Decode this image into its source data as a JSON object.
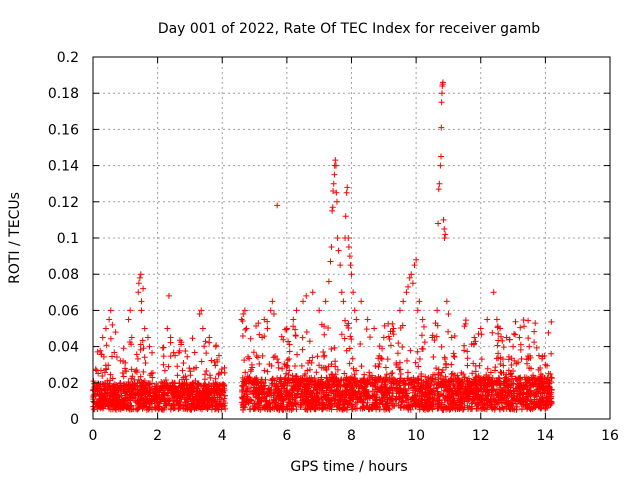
{
  "chart_data": {
    "type": "scatter",
    "title": "Day 001 of 2022, Rate Of TEC Index for receiver gamb",
    "xlabel": "GPS time / hours",
    "ylabel": "ROTI / TECUs",
    "xlim": [
      0,
      16
    ],
    "ylim": [
      0,
      0.2
    ],
    "x_ticks": [
      0,
      2,
      4,
      6,
      8,
      10,
      12,
      14,
      16
    ],
    "x_tick_labels": [
      "0",
      "2",
      "4",
      "6",
      "8",
      "10",
      "12",
      "14",
      "16"
    ],
    "y_ticks": [
      0,
      0.02,
      0.04,
      0.06,
      0.08,
      0.1,
      0.12,
      0.14,
      0.16,
      0.18,
      0.2
    ],
    "y_tick_labels": [
      "0",
      "0.02",
      "0.04",
      "0.06",
      "0.08",
      "0.1",
      "0.12",
      "0.14",
      "0.16",
      "0.18",
      "0.2"
    ],
    "grid": true,
    "marker": "+",
    "marker_color": "#ff0000",
    "series": [
      {
        "name": "ROTI",
        "segments": [
          {
            "x_range": [
              0.0,
              4.1
            ],
            "typical": [
              0.005,
              0.03
            ],
            "max_typical": 0.045
          },
          {
            "x_range": [
              4.6,
              14.2
            ],
            "typical": [
              0.005,
              0.035
            ],
            "max_typical": 0.055
          }
        ],
        "points": [
          [
            0.3,
            0.045
          ],
          [
            0.4,
            0.05
          ],
          [
            0.5,
            0.055
          ],
          [
            0.55,
            0.06
          ],
          [
            0.6,
            0.052
          ],
          [
            0.7,
            0.048
          ],
          [
            1.1,
            0.055
          ],
          [
            1.15,
            0.06
          ],
          [
            1.2,
            0.045
          ],
          [
            1.4,
            0.07
          ],
          [
            1.42,
            0.075
          ],
          [
            1.45,
            0.078
          ],
          [
            1.48,
            0.08
          ],
          [
            1.5,
            0.065
          ],
          [
            1.5,
            0.06
          ],
          [
            1.55,
            0.072
          ],
          [
            1.6,
            0.05
          ],
          [
            1.7,
            0.045
          ],
          [
            1.75,
            0.04
          ],
          [
            2.3,
            0.05
          ],
          [
            2.35,
            0.068
          ],
          [
            2.4,
            0.045
          ],
          [
            3.3,
            0.058
          ],
          [
            3.35,
            0.06
          ],
          [
            3.4,
            0.05
          ],
          [
            3.6,
            0.045
          ],
          [
            3.8,
            0.04
          ],
          [
            3.9,
            0.035
          ],
          [
            4.6,
            0.055
          ],
          [
            4.65,
            0.058
          ],
          [
            4.7,
            0.06
          ],
          [
            4.75,
            0.05
          ],
          [
            5.3,
            0.055
          ],
          [
            5.4,
            0.05
          ],
          [
            5.5,
            0.06
          ],
          [
            5.55,
            0.065
          ],
          [
            5.6,
            0.058
          ],
          [
            5.7,
            0.118
          ],
          [
            6.0,
            0.05
          ],
          [
            6.2,
            0.055
          ],
          [
            6.3,
            0.06
          ],
          [
            6.5,
            0.065
          ],
          [
            6.6,
            0.068
          ],
          [
            6.8,
            0.07
          ],
          [
            7.0,
            0.06
          ],
          [
            7.2,
            0.065
          ],
          [
            7.3,
            0.076
          ],
          [
            7.35,
            0.087
          ],
          [
            7.38,
            0.095
          ],
          [
            7.4,
            0.115
          ],
          [
            7.42,
            0.117
          ],
          [
            7.43,
            0.126
          ],
          [
            7.45,
            0.13
          ],
          [
            7.47,
            0.135
          ],
          [
            7.48,
            0.14
          ],
          [
            7.5,
            0.143
          ],
          [
            7.52,
            0.14
          ],
          [
            7.53,
            0.125
          ],
          [
            7.55,
            0.12
          ],
          [
            7.57,
            0.1
          ],
          [
            7.6,
            0.093
          ],
          [
            7.65,
            0.085
          ],
          [
            7.7,
            0.07
          ],
          [
            7.75,
            0.065
          ],
          [
            7.8,
            0.1
          ],
          [
            7.82,
            0.112
          ],
          [
            7.85,
            0.125
          ],
          [
            7.87,
            0.128
          ],
          [
            7.9,
            0.1
          ],
          [
            7.92,
            0.095
          ],
          [
            7.95,
            0.09
          ],
          [
            7.97,
            0.085
          ],
          [
            8.0,
            0.08
          ],
          [
            8.05,
            0.07
          ],
          [
            8.1,
            0.06
          ],
          [
            8.15,
            0.055
          ],
          [
            8.3,
            0.065
          ],
          [
            8.5,
            0.055
          ],
          [
            8.7,
            0.05
          ],
          [
            9.0,
            0.045
          ],
          [
            9.3,
            0.05
          ],
          [
            9.5,
            0.06
          ],
          [
            9.6,
            0.065
          ],
          [
            9.7,
            0.07
          ],
          [
            9.75,
            0.073
          ],
          [
            9.8,
            0.078
          ],
          [
            9.85,
            0.08
          ],
          [
            9.9,
            0.075
          ],
          [
            9.95,
            0.085
          ],
          [
            10.0,
            0.088
          ],
          [
            10.05,
            0.06
          ],
          [
            10.1,
            0.065
          ],
          [
            10.2,
            0.055
          ],
          [
            10.5,
            0.045
          ],
          [
            10.6,
            0.053
          ],
          [
            10.65,
            0.06
          ],
          [
            10.68,
            0.108
          ],
          [
            10.7,
            0.127
          ],
          [
            10.72,
            0.13
          ],
          [
            10.75,
            0.14
          ],
          [
            10.77,
            0.145
          ],
          [
            10.78,
            0.161
          ],
          [
            10.79,
            0.175
          ],
          [
            10.8,
            0.18
          ],
          [
            10.81,
            0.184
          ],
          [
            10.82,
            0.185
          ],
          [
            10.83,
            0.186
          ],
          [
            10.85,
            0.11
          ],
          [
            10.87,
            0.105
          ],
          [
            10.88,
            0.1
          ],
          [
            10.9,
            0.102
          ],
          [
            10.95,
            0.065
          ],
          [
            11.0,
            0.058
          ],
          [
            11.1,
            0.045
          ],
          [
            11.8,
            0.045
          ],
          [
            12.0,
            0.05
          ],
          [
            12.2,
            0.055
          ],
          [
            12.4,
            0.07
          ],
          [
            12.5,
            0.055
          ],
          [
            12.6,
            0.05
          ],
          [
            12.8,
            0.045
          ],
          [
            13.0,
            0.04
          ],
          [
            13.2,
            0.045
          ],
          [
            13.5,
            0.04
          ],
          [
            13.8,
            0.035
          ],
          [
            14.0,
            0.03
          ],
          [
            14.1,
            0.025
          ]
        ]
      }
    ]
  }
}
